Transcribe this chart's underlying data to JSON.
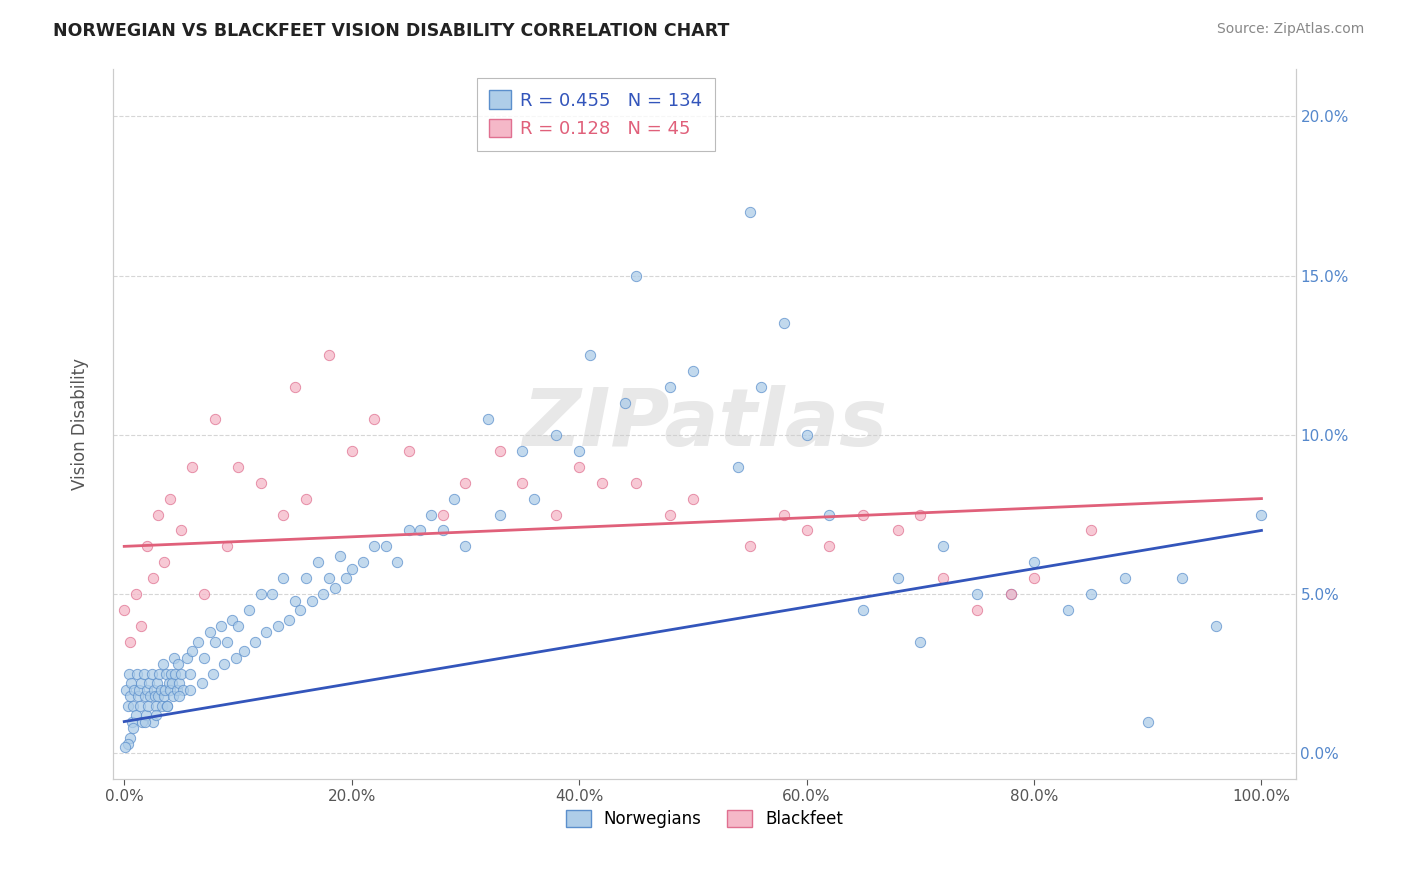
{
  "title": "NORWEGIAN VS BLACKFEET VISION DISABILITY CORRELATION CHART",
  "source": "Source: ZipAtlas.com",
  "ylabel": "Vision Disability",
  "legend_label1": "Norwegians",
  "legend_label2": "Blackfeet",
  "R1": 0.455,
  "N1": 134,
  "R2": 0.128,
  "N2": 45,
  "color_blue": "#AECDE8",
  "color_pink": "#F5B8C8",
  "edge_blue": "#5B8FCC",
  "edge_pink": "#E07090",
  "trendline_blue": "#3355BB",
  "trendline_pink": "#E0607A",
  "background": "#FFFFFF",
  "right_tick_color": "#5588CC",
  "nor_x": [
    0.2,
    0.3,
    0.4,
    0.5,
    0.6,
    0.7,
    0.8,
    0.9,
    1.0,
    1.1,
    1.2,
    1.3,
    1.4,
    1.5,
    1.6,
    1.7,
    1.8,
    1.9,
    2.0,
    2.1,
    2.2,
    2.3,
    2.4,
    2.5,
    2.6,
    2.7,
    2.8,
    2.9,
    3.0,
    3.1,
    3.2,
    3.3,
    3.4,
    3.5,
    3.6,
    3.7,
    3.8,
    3.9,
    4.0,
    4.1,
    4.2,
    4.3,
    4.4,
    4.5,
    4.6,
    4.7,
    4.8,
    5.0,
    5.2,
    5.5,
    5.8,
    6.0,
    6.5,
    7.0,
    7.5,
    8.0,
    8.5,
    9.0,
    9.5,
    10.0,
    11.0,
    12.0,
    13.0,
    14.0,
    15.0,
    16.0,
    17.0,
    18.0,
    19.0,
    20.0,
    22.0,
    24.0,
    26.0,
    28.0,
    30.0,
    33.0,
    36.0,
    40.0,
    44.0,
    48.0,
    50.0,
    54.0,
    56.0,
    58.0,
    60.0,
    62.0,
    65.0,
    68.0,
    70.0,
    72.0,
    75.0,
    78.0,
    80.0,
    83.0,
    85.0,
    88.0,
    90.0,
    93.0,
    96.0,
    100.0,
    55.0,
    45.0,
    41.0,
    38.0,
    35.0,
    32.0,
    29.0,
    27.0,
    25.0,
    23.0,
    21.0,
    19.5,
    18.5,
    17.5,
    16.5,
    15.5,
    14.5,
    13.5,
    12.5,
    11.5,
    10.5,
    9.8,
    8.8,
    7.8,
    6.8,
    5.8,
    4.8,
    3.8,
    2.8,
    1.8,
    0.8,
    0.5,
    0.3,
    0.1
  ],
  "nor_y": [
    2.0,
    1.5,
    2.5,
    1.8,
    2.2,
    1.0,
    1.5,
    2.0,
    1.2,
    2.5,
    1.8,
    2.0,
    1.5,
    2.2,
    1.0,
    2.5,
    1.8,
    1.2,
    2.0,
    1.5,
    2.2,
    1.8,
    2.5,
    1.0,
    2.0,
    1.8,
    1.5,
    2.2,
    1.8,
    2.5,
    2.0,
    1.5,
    2.8,
    1.8,
    2.0,
    2.5,
    1.5,
    2.2,
    2.0,
    2.5,
    2.2,
    1.8,
    3.0,
    2.5,
    2.0,
    2.8,
    2.2,
    2.5,
    2.0,
    3.0,
    2.5,
    3.2,
    3.5,
    3.0,
    3.8,
    3.5,
    4.0,
    3.5,
    4.2,
    4.0,
    4.5,
    5.0,
    5.0,
    5.5,
    4.8,
    5.5,
    6.0,
    5.5,
    6.2,
    5.8,
    6.5,
    6.0,
    7.0,
    7.0,
    6.5,
    7.5,
    8.0,
    9.5,
    11.0,
    11.5,
    12.0,
    9.0,
    11.5,
    13.5,
    10.0,
    7.5,
    4.5,
    5.5,
    3.5,
    6.5,
    5.0,
    5.0,
    6.0,
    4.5,
    5.0,
    5.5,
    1.0,
    5.5,
    4.0,
    7.5,
    17.0,
    15.0,
    12.5,
    10.0,
    9.5,
    10.5,
    8.0,
    7.5,
    7.0,
    6.5,
    6.0,
    5.5,
    5.2,
    5.0,
    4.8,
    4.5,
    4.2,
    4.0,
    3.8,
    3.5,
    3.2,
    3.0,
    2.8,
    2.5,
    2.2,
    2.0,
    1.8,
    1.5,
    1.2,
    1.0,
    0.8,
    0.5,
    0.3,
    0.2
  ],
  "blk_x": [
    0.0,
    0.5,
    1.0,
    1.5,
    2.0,
    2.5,
    3.0,
    3.5,
    4.0,
    5.0,
    6.0,
    7.0,
    8.0,
    9.0,
    10.0,
    12.0,
    14.0,
    15.0,
    16.0,
    18.0,
    20.0,
    22.0,
    25.0,
    28.0,
    30.0,
    33.0,
    35.0,
    38.0,
    40.0,
    42.0,
    45.0,
    48.0,
    50.0,
    55.0,
    58.0,
    60.0,
    62.0,
    65.0,
    68.0,
    70.0,
    72.0,
    75.0,
    78.0,
    80.0,
    85.0
  ],
  "blk_y": [
    4.5,
    3.5,
    5.0,
    4.0,
    6.5,
    5.5,
    7.5,
    6.0,
    8.0,
    7.0,
    9.0,
    5.0,
    10.5,
    6.5,
    9.0,
    8.5,
    7.5,
    11.5,
    8.0,
    12.5,
    9.5,
    10.5,
    9.5,
    7.5,
    8.5,
    9.5,
    8.5,
    7.5,
    9.0,
    8.5,
    8.5,
    7.5,
    8.0,
    6.5,
    7.5,
    7.0,
    6.5,
    7.5,
    7.0,
    7.5,
    5.5,
    4.5,
    5.0,
    5.5,
    7.0
  ]
}
